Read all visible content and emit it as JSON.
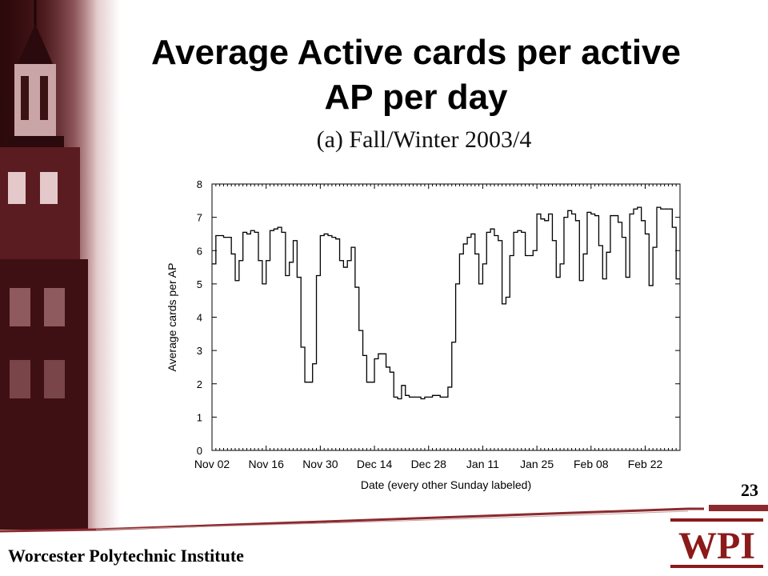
{
  "slide": {
    "title_line1": "Average Active cards per active",
    "title_line2": "AP per day",
    "subtitle": "(a) Fall/Winter 2003/4",
    "page_number": "23",
    "footer": "Worcester Polytechnic Institute",
    "logo_text": "WPI",
    "colors": {
      "brand": "#8b1a1a",
      "footer_line": "#8b2a2e",
      "text": "#000000"
    },
    "icons": [
      "building-tower-image",
      "wpi-logo"
    ]
  },
  "chart_data": {
    "type": "line",
    "step": true,
    "title": "(a) Fall/Winter 2003/4",
    "xlabel": "Date (every other Sunday labeled)",
    "ylabel": "Average cards per AP",
    "ylim": [
      0,
      8
    ],
    "yticks": [
      0,
      1,
      2,
      3,
      4,
      5,
      6,
      7,
      8
    ],
    "x_start_label": "Nov 02",
    "xtick_labels": [
      "Nov 02",
      "Nov 16",
      "Nov 30",
      "Dec 14",
      "Dec 28",
      "Jan 11",
      "Jan 25",
      "Feb 08",
      "Feb 22"
    ],
    "grid": false,
    "values": [
      5.6,
      6.45,
      6.45,
      6.4,
      6.4,
      5.9,
      5.1,
      5.7,
      6.55,
      6.5,
      6.6,
      6.55,
      5.7,
      5.0,
      5.7,
      6.6,
      6.65,
      6.7,
      6.55,
      5.25,
      5.65,
      6.3,
      5.2,
      3.1,
      2.05,
      2.05,
      2.6,
      5.25,
      6.45,
      6.5,
      6.45,
      6.4,
      6.35,
      5.7,
      5.5,
      5.7,
      6.1,
      4.9,
      3.6,
      2.85,
      2.05,
      2.05,
      2.75,
      2.9,
      2.9,
      2.5,
      2.35,
      1.6,
      1.55,
      1.95,
      1.65,
      1.6,
      1.6,
      1.6,
      1.55,
      1.6,
      1.6,
      1.65,
      1.65,
      1.6,
      1.6,
      1.9,
      3.25,
      5.0,
      5.9,
      6.2,
      6.4,
      6.5,
      5.9,
      5.0,
      5.6,
      6.55,
      6.65,
      6.45,
      6.3,
      4.4,
      4.6,
      5.85,
      6.55,
      6.6,
      6.55,
      5.85,
      5.85,
      6.0,
      7.1,
      6.95,
      6.9,
      7.1,
      6.3,
      5.2,
      5.6,
      7.0,
      7.2,
      7.1,
      6.9,
      5.1,
      5.9,
      7.15,
      7.1,
      7.05,
      6.15,
      5.15,
      5.95,
      7.05,
      7.05,
      6.85,
      6.4,
      5.2,
      7.1,
      7.25,
      7.3,
      6.9,
      6.5,
      4.95,
      6.1,
      7.3,
      7.25,
      7.25,
      7.25,
      6.7,
      5.15
    ]
  }
}
